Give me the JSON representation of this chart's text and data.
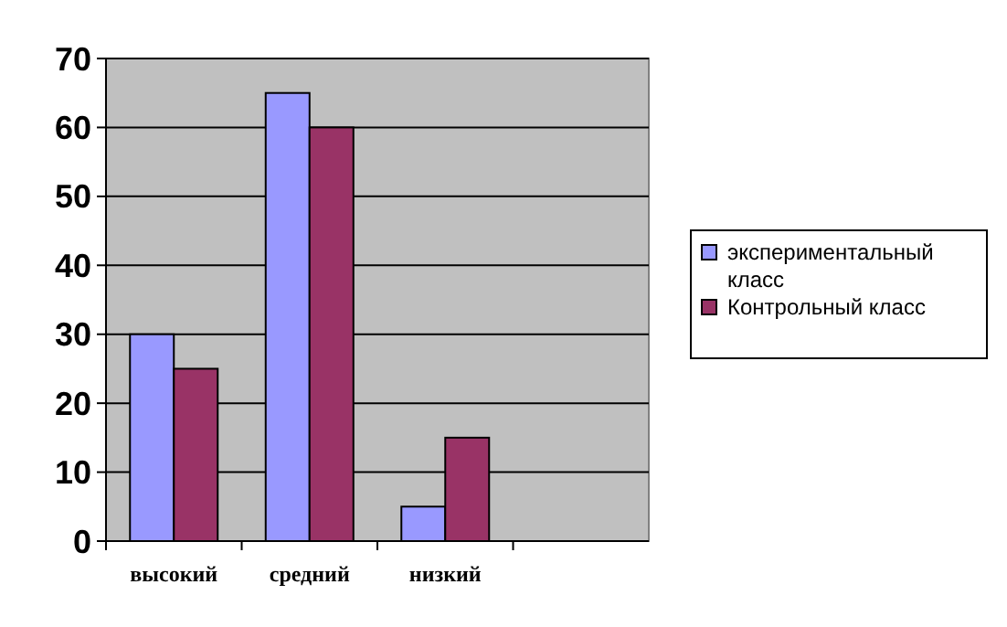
{
  "chart_data": {
    "type": "bar",
    "categories": [
      "высокий",
      "средний",
      "низкий",
      null
    ],
    "series": [
      {
        "name": "экспериментальный класс",
        "color": "#9999ff",
        "values": [
          30,
          65,
          5,
          null
        ]
      },
      {
        "name": "Контрольный класс",
        "color": "#993366",
        "values": [
          25,
          60,
          15,
          null
        ]
      }
    ],
    "ylim": [
      0,
      70
    ],
    "yticks": [
      0,
      10,
      20,
      30,
      40,
      50,
      60,
      70
    ],
    "grid": "y",
    "legend": "right"
  }
}
